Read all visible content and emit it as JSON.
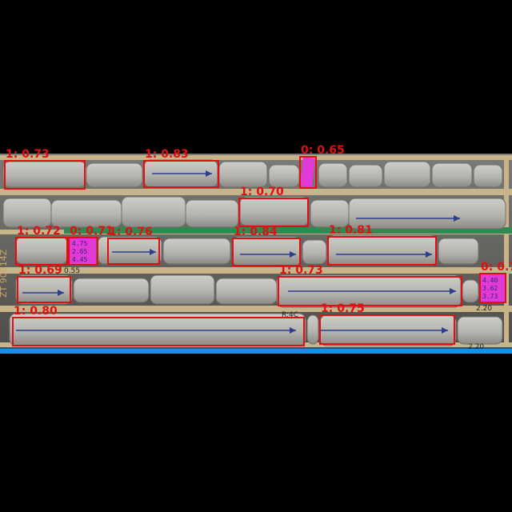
{
  "colors": {
    "background": "#000000",
    "box_stroke": "#e01010",
    "label_text": "#e01010",
    "tray_frame": "#c8b48a",
    "core_rock": "#b9b8b4",
    "core_shadow": "#6f6f6c",
    "tag_magenta": "#e23ad8",
    "blue_strip": "#1e7ad0",
    "tape_green": "#2f8a52"
  },
  "image_caption_left": "ZT 90014Z",
  "tray_markers": [
    "0.55",
    "2.20",
    "2.20",
    "R:4C"
  ],
  "detections": [
    {
      "label": "1: 0.73"
    },
    {
      "label": "1: 0.83"
    },
    {
      "label": "0: 0.65"
    },
    {
      "label": "1: 0.70"
    },
    {
      "label": "1: 0.72"
    },
    {
      "label": "0: 0.71"
    },
    {
      "label": "1: 0.76"
    },
    {
      "label": "1: 0.84"
    },
    {
      "label": "1: 0.81"
    },
    {
      "label": "0: 0.7"
    },
    {
      "label": "1: 0.69"
    },
    {
      "label": "1: 0.73"
    },
    {
      "label": "1: 0.80"
    },
    {
      "label": "1: 0.75"
    }
  ],
  "tag_texts": [
    [
      "4.75",
      "2.65",
      "4.45"
    ],
    [
      "4.40",
      "3.62",
      "3.73"
    ]
  ]
}
